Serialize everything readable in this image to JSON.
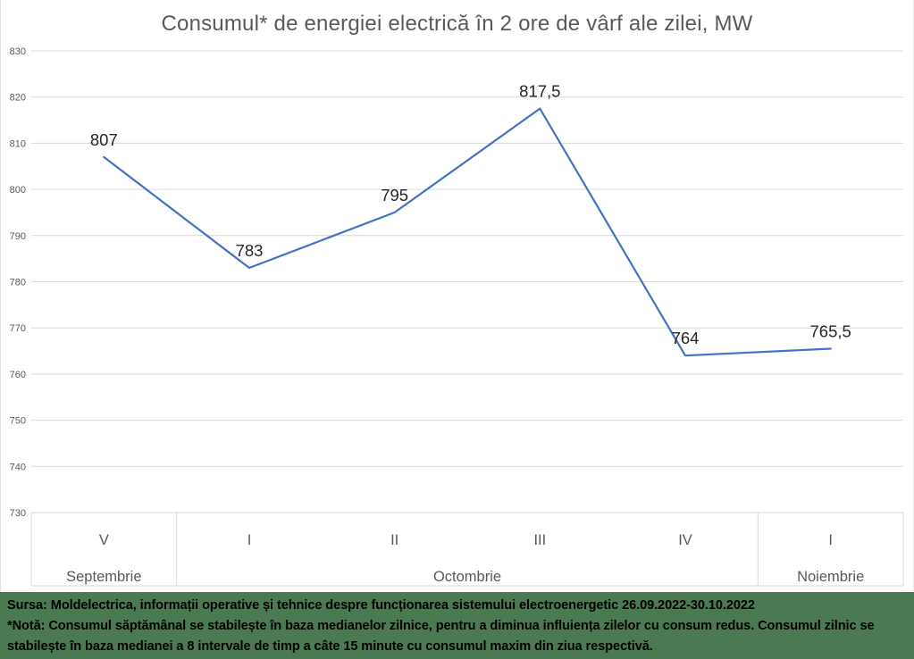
{
  "chart_data": {
    "type": "line",
    "title": "Consumul* de energiei electrică în 2 ore de vârf ale zilei, MW",
    "categories": [
      "V",
      "I",
      "II",
      "III",
      "IV",
      "I"
    ],
    "category_groups": [
      {
        "label": "Septembrie",
        "span": 1
      },
      {
        "label": "Octombrie",
        "span": 4
      },
      {
        "label": "Noiembrie",
        "span": 1
      }
    ],
    "series": [
      {
        "values": [
          807,
          783,
          795,
          817.5,
          764,
          765.5
        ],
        "display_labels": [
          "807",
          "783",
          "795",
          "817,5",
          "764",
          "765,5"
        ]
      }
    ],
    "ylim": [
      730,
      830
    ],
    "ytick_step": 10,
    "yticks": [
      730,
      740,
      750,
      760,
      770,
      780,
      790,
      800,
      810,
      820,
      830
    ],
    "grid": true,
    "legend": "none",
    "colors": {
      "line": "#4472C4",
      "grid": "#D9D9D9",
      "axis_text": "#595959",
      "data_label": "#262626",
      "title_text": "#595959"
    }
  },
  "footer": {
    "source": "Sursa: Moldelectrica, informații operative și tehnice despre funcționarea sistemului electroenergetic 26.09.2022-30.10.2022",
    "note": "*Notă: Consumul săptămânal se stabilește în baza medianelor zilnice, pentru a diminua influiența zilelor cu consum redus. Consumul zilnic se stabilește în baza medianei a 8 intervale de timp a câte 15 minute cu consumul maxim din ziua respectivă.",
    "bg_color": "#4b7a52",
    "text_color": "#000000"
  }
}
